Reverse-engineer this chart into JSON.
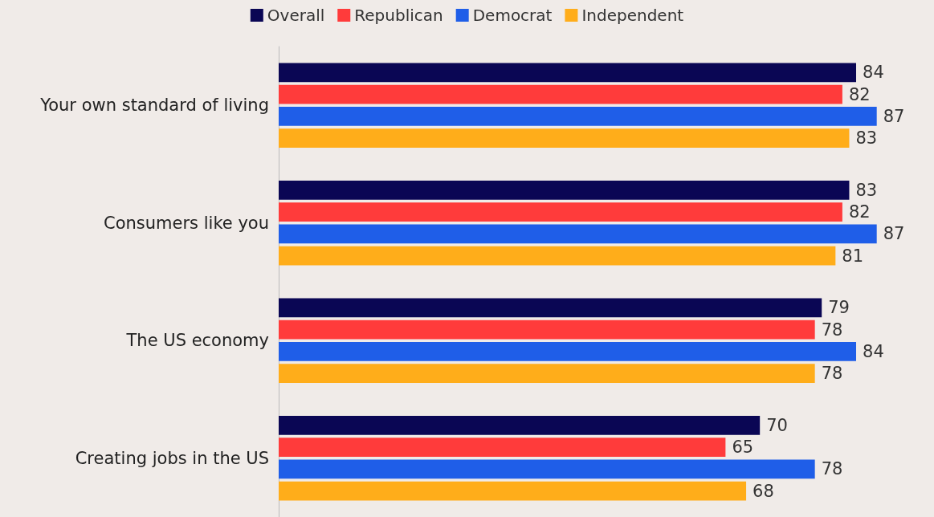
{
  "chart_data": {
    "type": "bar",
    "orientation": "horizontal",
    "data_labels": true,
    "legend": "top",
    "categories": [
      "Your own standard of living",
      "Consumers like you",
      "The US economy",
      "Creating jobs in the US"
    ],
    "series": [
      {
        "name": "Overall",
        "color": "#0a0654",
        "values": [
          84,
          83,
          79,
          70
        ]
      },
      {
        "name": "Republican",
        "color": "#ff3b3b",
        "values": [
          82,
          82,
          78,
          65
        ]
      },
      {
        "name": "Democrat",
        "color": "#1f5ee8",
        "values": [
          87,
          87,
          84,
          78
        ]
      },
      {
        "name": "Independent",
        "color": "#ffad1a",
        "values": [
          83,
          81,
          78,
          68
        ]
      }
    ]
  }
}
